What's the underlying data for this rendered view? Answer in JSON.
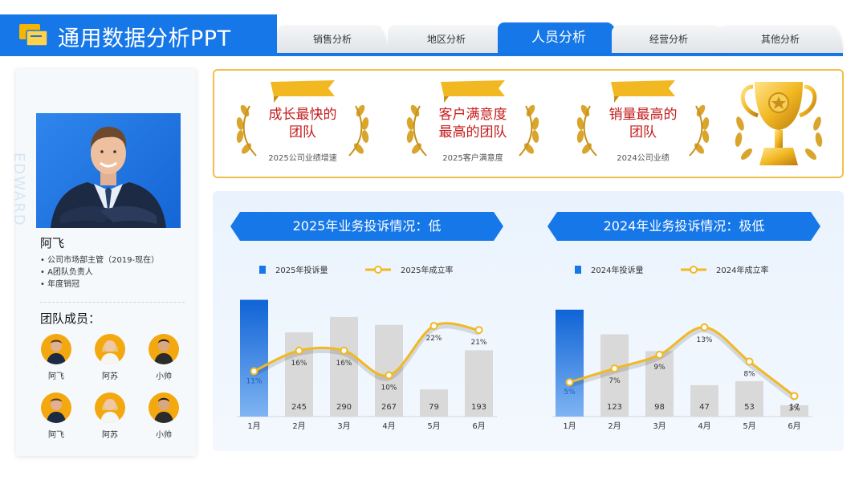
{
  "header": {
    "title": "通用数据分析PPT",
    "tabs": [
      {
        "label": "销售分析",
        "active": false
      },
      {
        "label": "地区分析",
        "active": false
      },
      {
        "label": "人员分析",
        "active": true
      },
      {
        "label": "经营分析",
        "active": false
      },
      {
        "label": "其他分析",
        "active": false
      }
    ]
  },
  "profile": {
    "vertical_text": "EDWARD",
    "name": "阿飞",
    "bullets": [
      "公司市场部主管（2019-现在）",
      "A团队负责人",
      "年度销冠"
    ],
    "team_title": "团队成员：",
    "members": [
      "阿飞",
      "阿苏",
      "小帅",
      "阿飞",
      "阿苏",
      "小帅"
    ]
  },
  "awards": [
    {
      "title_line1": "成长最快的",
      "title_line2": "团队",
      "subtitle": "2025公司业绩增速"
    },
    {
      "title_line1": "客户满意度",
      "title_line2": "最高的团队",
      "subtitle": "2025客户满意度"
    },
    {
      "title_line1": "销量最高的",
      "title_line2": "团队",
      "subtitle": "2024公司业绩"
    }
  ],
  "colors": {
    "brand_blue": "#1677e8",
    "bar_gray": "#d9d9d9",
    "line_gold": "#f2b822",
    "award_red": "#c41b1b",
    "gold_border": "#f1c04a"
  },
  "chart_data": [
    {
      "type": "bar",
      "title": "2025年业务投诉情况：低",
      "categories": [
        "1月",
        "2月",
        "3月",
        "4月",
        "5月",
        "6月"
      ],
      "series": [
        {
          "name": "2025年投诉量",
          "type": "bar",
          "values": [
            340,
            245,
            290,
            267,
            79,
            193
          ],
          "labels": [
            "",
            "245",
            "290",
            "267",
            "79",
            "193"
          ]
        },
        {
          "name": "2025年成立率",
          "type": "line",
          "values": [
            11,
            16,
            16,
            10,
            22,
            21
          ],
          "labels": [
            "11%",
            "16%",
            "16%",
            "10%",
            "22%",
            "21%"
          ]
        }
      ],
      "ylim": [
        0,
        360
      ],
      "y2lim": [
        0,
        30
      ],
      "highlight_index": 0
    },
    {
      "type": "bar",
      "title": "2024年业务投诉情况：极低",
      "categories": [
        "1月",
        "2月",
        "3月",
        "4月",
        "5月",
        "6月"
      ],
      "series": [
        {
          "name": "2024年投诉量",
          "type": "bar",
          "values": [
            160,
            123,
            98,
            47,
            53,
            17
          ],
          "labels": [
            "",
            "123",
            "98",
            "47",
            "53",
            "17"
          ]
        },
        {
          "name": "2024年成立率",
          "type": "line",
          "values": [
            5,
            7,
            9,
            13,
            8,
            3
          ],
          "labels": [
            "5%",
            "7%",
            "9%",
            "13%",
            "8%",
            "3%"
          ]
        }
      ],
      "ylim": [
        0,
        185
      ],
      "y2lim": [
        0,
        18
      ],
      "highlight_index": 0
    }
  ]
}
